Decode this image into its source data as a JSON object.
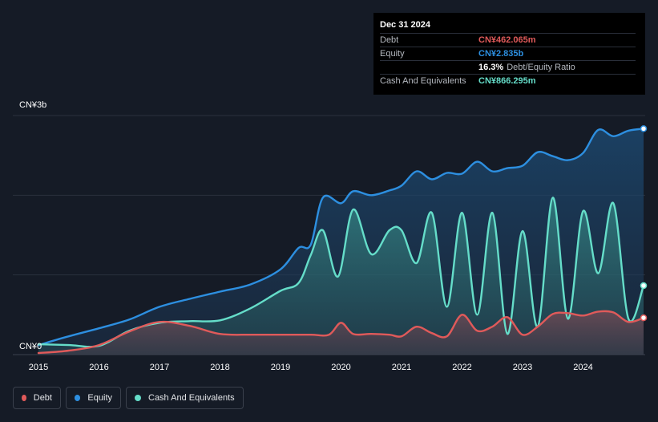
{
  "tooltip": {
    "date": "Dec 31 2024",
    "rows": [
      {
        "label": "Debt",
        "value": "CN¥462.065m",
        "color": "#e05a5a"
      },
      {
        "label": "Equity",
        "value": "CN¥2.835b",
        "color": "#2d8fe0"
      },
      {
        "label": "Cash And Equivalents",
        "value": "CN¥866.295m",
        "color": "#65ddc9"
      }
    ],
    "ratio_value": "16.3%",
    "ratio_label": "Debt/Equity Ratio"
  },
  "legend": [
    {
      "label": "Debt",
      "color": "#e05a5a"
    },
    {
      "label": "Equity",
      "color": "#2d8fe0"
    },
    {
      "label": "Cash And Equivalents",
      "color": "#65ddc9"
    }
  ],
  "chart_data": {
    "type": "area",
    "y_top_label": "CN¥3b",
    "y_zero_label": "CN¥0",
    "ylim": [
      0,
      3000
    ],
    "xlim": [
      2015.0,
      2025.0
    ],
    "x_ticks": [
      "2015",
      "2016",
      "2017",
      "2018",
      "2019",
      "2020",
      "2021",
      "2022",
      "2023",
      "2024"
    ],
    "grid": true,
    "series": [
      {
        "name": "Equity",
        "color": "#2d8fe0",
        "x": [
          2015.0,
          2015.5,
          2016.0,
          2016.5,
          2017.0,
          2017.5,
          2018.0,
          2018.5,
          2019.0,
          2019.3,
          2019.5,
          2019.7,
          2020.0,
          2020.2,
          2020.5,
          2020.8,
          2021.0,
          2021.25,
          2021.5,
          2021.75,
          2022.0,
          2022.25,
          2022.5,
          2022.75,
          2023.0,
          2023.25,
          2023.5,
          2023.75,
          2024.0,
          2024.25,
          2024.5,
          2024.75,
          2025.0
        ],
        "y": [
          120,
          230,
          330,
          440,
          600,
          700,
          790,
          880,
          1070,
          1340,
          1380,
          1970,
          1900,
          2050,
          2000,
          2060,
          2120,
          2300,
          2200,
          2280,
          2270,
          2420,
          2300,
          2340,
          2370,
          2540,
          2490,
          2440,
          2530,
          2820,
          2740,
          2810,
          2835
        ]
      },
      {
        "name": "Cash And Equivalents",
        "color": "#65ddc9",
        "x": [
          2015.0,
          2015.5,
          2016.0,
          2016.5,
          2017.0,
          2017.5,
          2018.0,
          2018.5,
          2019.0,
          2019.3,
          2019.5,
          2019.7,
          2019.95,
          2020.2,
          2020.5,
          2020.8,
          2021.0,
          2021.25,
          2021.5,
          2021.75,
          2022.0,
          2022.25,
          2022.5,
          2022.75,
          2023.0,
          2023.25,
          2023.5,
          2023.75,
          2024.0,
          2024.25,
          2024.5,
          2024.75,
          2025.0
        ],
        "y": [
          130,
          120,
          110,
          300,
          400,
          420,
          430,
          580,
          800,
          900,
          1250,
          1560,
          980,
          1820,
          1260,
          1560,
          1560,
          1150,
          1780,
          600,
          1780,
          500,
          1780,
          260,
          1550,
          350,
          1970,
          450,
          1800,
          1020,
          1900,
          450,
          866
        ]
      },
      {
        "name": "Debt",
        "color": "#e05a5a",
        "x": [
          2015.0,
          2015.5,
          2016.0,
          2016.5,
          2017.0,
          2017.5,
          2018.0,
          2018.5,
          2019.0,
          2019.5,
          2019.8,
          2020.0,
          2020.2,
          2020.5,
          2020.8,
          2021.0,
          2021.25,
          2021.5,
          2021.75,
          2022.0,
          2022.25,
          2022.5,
          2022.75,
          2023.0,
          2023.25,
          2023.5,
          2023.75,
          2024.0,
          2024.25,
          2024.5,
          2024.75,
          2025.0
        ],
        "y": [
          20,
          50,
          120,
          290,
          410,
          360,
          260,
          250,
          250,
          250,
          250,
          400,
          260,
          260,
          250,
          230,
          350,
          270,
          230,
          500,
          300,
          350,
          470,
          250,
          350,
          510,
          520,
          490,
          540,
          530,
          410,
          462
        ]
      }
    ]
  }
}
